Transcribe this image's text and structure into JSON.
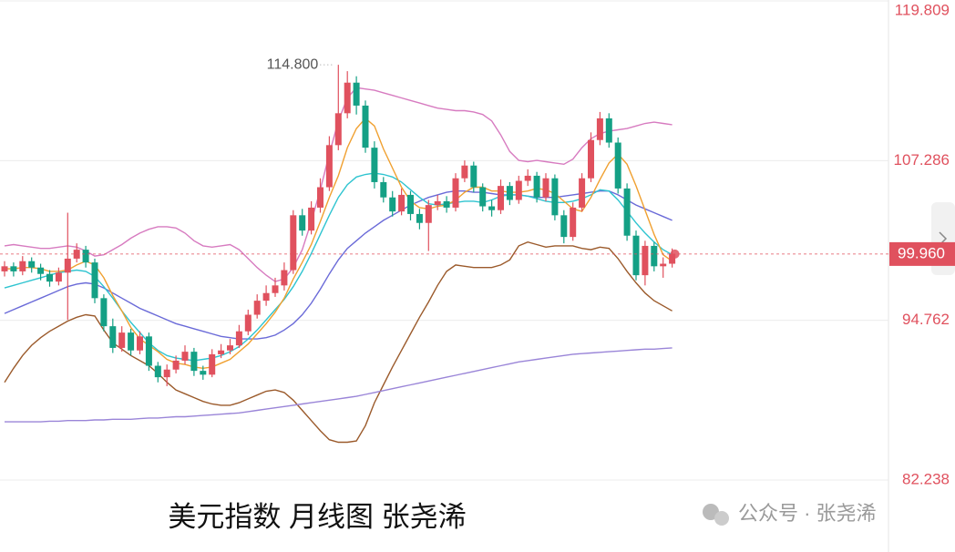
{
  "chart_data": {
    "type": "candlestick",
    "title": "美元指数  月线图 张尧浠",
    "watermark": "公众号 · 张尧浠",
    "ylim": [
      82.238,
      119.809
    ],
    "yticks": [
      82.238,
      94.762,
      107.286,
      119.809
    ],
    "grid": true,
    "current_price": {
      "value": 99.96,
      "label": "99.960"
    },
    "annotations": [
      {
        "index": 37,
        "value": 114.8,
        "label": "114.800"
      }
    ],
    "ohlc": {
      "up_color": "#e0515e",
      "down_color": "#14a085",
      "open": [
        98.6,
        99.0,
        98.6,
        99.4,
        98.9,
        98.4,
        97.8,
        98.5,
        99.6,
        100.3,
        99.3,
        96.5,
        94.3,
        92.6,
        93.8,
        92.4,
        93.5,
        91.2,
        90.3,
        90.9,
        91.6,
        92.3,
        90.8,
        90.5,
        92.1,
        92.4,
        92.8,
        93.9,
        95.2,
        96.3,
        96.9,
        97.5,
        98.7,
        103.0,
        101.8,
        103.6,
        105.2,
        108.5,
        111.0,
        113.4,
        111.6,
        108.3,
        105.6,
        104.4,
        103.3,
        104.6,
        103.1,
        102.4,
        103.8,
        104.1,
        103.6,
        105.9,
        106.9,
        105.2,
        103.7,
        103.4,
        105.3,
        104.2,
        105.7,
        106.1,
        104.4,
        105.9,
        103.0,
        101.3,
        103.6,
        105.9,
        108.9,
        110.6,
        108.7,
        105.1,
        101.4,
        98.3,
        100.6,
        99.0,
        99.2
      ],
      "high": [
        99.4,
        99.3,
        99.8,
        99.7,
        99.2,
        98.7,
        98.9,
        103.2,
        100.8,
        100.6,
        99.6,
        96.8,
        94.9,
        94.3,
        94.1,
        93.9,
        93.8,
        91.5,
        91.3,
        92.0,
        92.8,
        92.6,
        91.2,
        92.5,
        92.9,
        93.3,
        94.4,
        95.6,
        96.8,
        97.5,
        98.1,
        99.3,
        103.4,
        103.5,
        104.1,
        105.9,
        109.2,
        114.8,
        114.3,
        113.9,
        112.0,
        108.8,
        106.0,
        104.9,
        105.1,
        104.9,
        103.5,
        104.2,
        104.6,
        104.5,
        106.3,
        107.3,
        107.2,
        105.5,
        104.2,
        105.8,
        105.6,
        106.1,
        106.6,
        106.4,
        106.3,
        106.2,
        103.4,
        104.0,
        106.3,
        109.5,
        111.1,
        111.0,
        109.1,
        105.5,
        101.8,
        101.0,
        100.9,
        99.7,
        100.4
      ],
      "low": [
        98.2,
        98.2,
        98.3,
        98.5,
        97.9,
        97.4,
        97.5,
        94.8,
        99.3,
        98.9,
        96.1,
        93.9,
        92.2,
        92.3,
        92.0,
        92.1,
        90.8,
        89.9,
        89.6,
        90.6,
        91.3,
        90.4,
        90.1,
        90.3,
        91.8,
        92.1,
        92.6,
        93.6,
        94.9,
        95.9,
        96.6,
        97.1,
        98.4,
        101.4,
        101.5,
        103.2,
        104.9,
        108.1,
        110.6,
        110.9,
        107.9,
        105.1,
        104.0,
        102.9,
        103.0,
        102.6,
        101.9,
        100.2,
        103.4,
        103.2,
        103.3,
        105.6,
        104.8,
        103.3,
        102.9,
        103.1,
        103.8,
        103.9,
        105.3,
        104.0,
        104.1,
        102.6,
        100.8,
        101.0,
        103.3,
        105.6,
        108.5,
        108.3,
        104.7,
        101.0,
        97.9,
        97.5,
        98.6,
        98.1,
        98.9
      ],
      "close": [
        99.0,
        98.6,
        99.4,
        98.9,
        98.4,
        97.8,
        98.5,
        99.6,
        100.3,
        99.3,
        96.5,
        94.3,
        92.6,
        93.8,
        92.4,
        93.5,
        91.2,
        90.3,
        90.9,
        91.6,
        92.3,
        90.8,
        90.5,
        92.1,
        92.4,
        92.8,
        93.9,
        95.2,
        96.3,
        96.9,
        97.5,
        98.7,
        103.0,
        101.8,
        103.6,
        105.2,
        108.5,
        111.0,
        113.4,
        111.6,
        108.3,
        105.6,
        104.4,
        103.3,
        104.6,
        103.1,
        102.4,
        103.8,
        104.1,
        103.6,
        105.9,
        106.9,
        105.2,
        103.7,
        103.4,
        105.3,
        104.2,
        105.7,
        106.1,
        104.4,
        105.9,
        103.0,
        101.3,
        103.6,
        105.9,
        108.9,
        110.6,
        108.7,
        105.1,
        101.4,
        98.3,
        100.6,
        99.0,
        99.2,
        99.96
      ]
    },
    "series": [
      {
        "color": "#d77bc0",
        "values": [
          100.6,
          100.7,
          100.6,
          100.5,
          100.4,
          100.4,
          100.5,
          100.6,
          100.5,
          100.2,
          99.8,
          99.9,
          100.3,
          100.7,
          101.2,
          101.6,
          101.9,
          102.1,
          102.1,
          102.0,
          101.6,
          101.0,
          100.6,
          100.5,
          100.6,
          100.7,
          100.3,
          99.6,
          98.9,
          98.3,
          97.8,
          98.0,
          98.9,
          100.3,
          102.5,
          105.0,
          107.8,
          110.4,
          112.2,
          113.0,
          112.9,
          112.8,
          112.6,
          112.4,
          112.2,
          112.0,
          111.8,
          111.6,
          111.4,
          111.3,
          111.2,
          111.2,
          111.1,
          110.9,
          110.4,
          109.3,
          108.0,
          107.3,
          107.2,
          107.3,
          107.2,
          107.1,
          107.0,
          107.4,
          108.3,
          109.0,
          109.4,
          109.6,
          109.7,
          109.8,
          110.0,
          110.2,
          110.3,
          110.2,
          110.1
        ]
      },
      {
        "color": "#9b5a2b",
        "values": [
          89.9,
          91.0,
          92.0,
          92.8,
          93.4,
          93.9,
          94.3,
          94.7,
          95.0,
          95.2,
          95.1,
          94.0,
          93.0,
          92.5,
          92.0,
          91.6,
          91.2,
          90.6,
          89.9,
          89.3,
          89.0,
          88.7,
          88.4,
          88.2,
          88.1,
          88.1,
          88.3,
          88.6,
          88.9,
          89.2,
          89.3,
          89.1,
          88.5,
          87.7,
          86.9,
          86.1,
          85.4,
          85.2,
          85.2,
          85.3,
          86.5,
          88.3,
          89.7,
          91.1,
          92.4,
          93.7,
          95.0,
          96.2,
          97.5,
          98.6,
          99.1,
          99.0,
          98.9,
          98.9,
          98.9,
          99.1,
          99.5,
          100.6,
          100.9,
          100.7,
          100.5,
          100.6,
          100.6,
          100.6,
          100.4,
          100.3,
          100.5,
          100.4,
          99.6,
          98.6,
          97.7,
          96.9,
          96.3,
          95.9,
          95.5
        ]
      },
      {
        "color": "#9a85d8",
        "values": [
          86.8,
          86.8,
          86.8,
          86.8,
          86.8,
          86.85,
          86.85,
          86.9,
          86.9,
          86.9,
          86.95,
          86.95,
          87.0,
          87.0,
          87.0,
          87.05,
          87.1,
          87.1,
          87.15,
          87.2,
          87.2,
          87.25,
          87.3,
          87.35,
          87.4,
          87.45,
          87.5,
          87.6,
          87.7,
          87.8,
          87.9,
          88.0,
          88.1,
          88.2,
          88.3,
          88.4,
          88.5,
          88.6,
          88.7,
          88.8,
          88.95,
          89.1,
          89.25,
          89.4,
          89.55,
          89.7,
          89.85,
          90.0,
          90.15,
          90.3,
          90.45,
          90.6,
          90.75,
          90.9,
          91.05,
          91.2,
          91.35,
          91.5,
          91.6,
          91.7,
          91.8,
          91.9,
          92.0,
          92.1,
          92.15,
          92.2,
          92.25,
          92.3,
          92.35,
          92.4,
          92.45,
          92.5,
          92.5,
          92.55,
          92.6
        ]
      },
      {
        "color": "#6a6ad8",
        "values": [
          95.3,
          95.6,
          95.9,
          96.2,
          96.5,
          96.8,
          97.1,
          97.4,
          97.6,
          97.7,
          97.6,
          97.3,
          96.9,
          96.5,
          96.1,
          95.7,
          95.4,
          95.1,
          94.8,
          94.5,
          94.3,
          94.1,
          93.9,
          93.7,
          93.5,
          93.4,
          93.3,
          93.3,
          93.3,
          93.4,
          93.6,
          94.0,
          94.5,
          95.2,
          96.1,
          97.2,
          98.4,
          99.5,
          100.4,
          101.0,
          101.6,
          102.1,
          102.6,
          103.0,
          103.4,
          103.8,
          104.1,
          104.4,
          104.6,
          104.8,
          104.9,
          104.9,
          104.8,
          104.8,
          104.7,
          104.6,
          104.6,
          104.6,
          104.5,
          104.4,
          104.4,
          104.4,
          104.5,
          104.6,
          104.7,
          104.8,
          104.9,
          104.9,
          104.6,
          104.2,
          103.8,
          103.5,
          103.2,
          102.9,
          102.6
        ]
      },
      {
        "color": "#2ec4d0",
        "values": [
          97.3,
          97.5,
          97.7,
          97.9,
          98.1,
          98.3,
          98.5,
          98.6,
          98.7,
          98.6,
          98.2,
          97.4,
          96.5,
          95.5,
          94.6,
          93.8,
          93.0,
          92.4,
          92.0,
          91.8,
          91.7,
          91.6,
          91.7,
          91.8,
          92.0,
          92.3,
          92.7,
          93.3,
          94.0,
          94.8,
          95.6,
          96.4,
          97.4,
          98.6,
          100.0,
          101.5,
          103.0,
          104.4,
          105.4,
          106.0,
          106.2,
          106.3,
          106.2,
          106.0,
          105.6,
          105.0,
          104.4,
          103.9,
          103.8,
          103.9,
          104.0,
          104.1,
          104.1,
          104.0,
          104.2,
          104.5,
          104.6,
          104.6,
          104.5,
          104.3,
          104.1,
          104.0,
          104.0,
          104.1,
          104.3,
          104.6,
          105.0,
          104.9,
          104.2,
          103.3,
          102.4,
          101.6,
          100.9,
          100.3,
          99.9
        ]
      },
      {
        "color": "#f0a030",
        "values": [
          98.8,
          98.8,
          98.9,
          98.9,
          98.8,
          98.6,
          98.6,
          98.7,
          99.1,
          99.4,
          99.1,
          98.1,
          96.7,
          95.5,
          94.2,
          93.3,
          92.8,
          92.3,
          91.7,
          91.4,
          91.3,
          91.1,
          91.0,
          91.1,
          91.4,
          91.7,
          92.3,
          92.9,
          93.7,
          94.5,
          95.4,
          96.5,
          98.0,
          99.3,
          100.7,
          102.5,
          104.4,
          106.1,
          108.3,
          109.8,
          110.6,
          110.0,
          108.2,
          106.7,
          105.2,
          104.1,
          103.6,
          103.5,
          103.7,
          103.8,
          104.2,
          104.8,
          105.2,
          105.2,
          104.9,
          104.9,
          104.8,
          104.8,
          104.9,
          105.1,
          105.0,
          104.7,
          104.1,
          103.5,
          103.3,
          104.4,
          105.8,
          107.1,
          107.8,
          107.0,
          105.3,
          103.4,
          101.5,
          99.9,
          99.4
        ]
      }
    ]
  }
}
